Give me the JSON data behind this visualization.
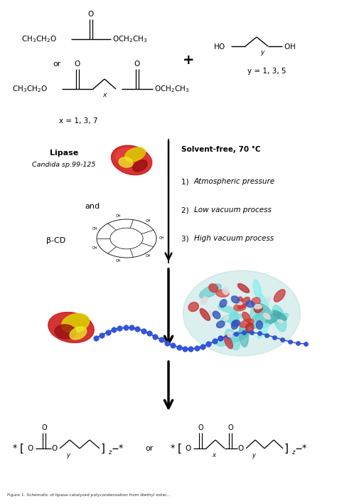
{
  "background_color": "#ffffff",
  "fig_width": 4.74,
  "fig_height": 7.08,
  "dpi": 100,
  "colors": {
    "text": "#000000",
    "arrow": "#000000"
  },
  "text": {
    "ch3ch2o": "CH₃CH₂O",
    "och2ch3": "OCH₂CH₃",
    "or": "or",
    "plus": "+",
    "ho": "HO",
    "oh": "OH",
    "y_eq": "y = 1, 3, 5",
    "x_eq": "x = 1, 3, 7",
    "lipase": "Lipase",
    "candida": "Candida sp.99-125",
    "and": "and",
    "beta_cd": "β-CD",
    "solvent": "Solvent-free, 70 °C",
    "cond1": "1)  Atmospheric pressure",
    "cond1_italic": "Atmospheric pressure",
    "cond2": "2)  Low vacuum process",
    "cond2_italic": "Low vacuum process",
    "cond3": "3)  High vacuum process",
    "cond3_italic": "High vacuum process"
  }
}
